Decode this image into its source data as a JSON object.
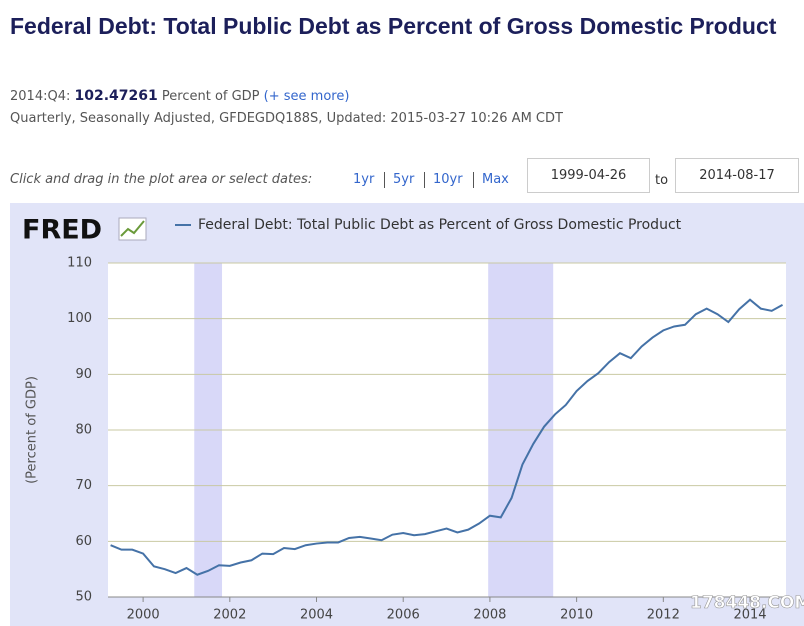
{
  "header": {
    "title": "Federal Debt: Total Public Debt as Percent of Gross Domestic Product",
    "date_label": "2014:Q4:",
    "value": "102.47261",
    "units": "Percent of GDP",
    "see_more": "(+ see more)",
    "details": "Quarterly, Seasonally Adjusted, GFDEGDQ188S, Updated: 2015-03-27 10:26 AM CDT"
  },
  "controls": {
    "prompt": "Click and drag in the plot area or select dates:",
    "ranges": [
      "1yr",
      "5yr",
      "10yr",
      "Max"
    ],
    "start": "1999-04-26",
    "to": "to",
    "end": "2014-08-17"
  },
  "chart_data": {
    "type": "line",
    "logo": "FRED",
    "ylabel": "(Percent of GDP)",
    "watermark": "178448.COM",
    "x": [
      1999.25,
      1999.5,
      1999.75,
      2000,
      2000.25,
      2000.5,
      2000.75,
      2001,
      2001.25,
      2001.5,
      2001.75,
      2002,
      2002.25,
      2002.5,
      2002.75,
      2003,
      2003.25,
      2003.5,
      2003.75,
      2004,
      2004.25,
      2004.5,
      2004.75,
      2005,
      2005.25,
      2005.5,
      2005.75,
      2006,
      2006.25,
      2006.5,
      2006.75,
      2007,
      2007.25,
      2007.5,
      2007.75,
      2008,
      2008.25,
      2008.5,
      2008.75,
      2009,
      2009.25,
      2009.5,
      2009.75,
      2010,
      2010.25,
      2010.5,
      2010.75,
      2011,
      2011.25,
      2011.5,
      2011.75,
      2012,
      2012.25,
      2012.5,
      2012.75,
      2013,
      2013.25,
      2013.5,
      2013.75,
      2014,
      2014.25,
      2014.5,
      2014.75
    ],
    "series": [
      {
        "name": "Federal Debt: Total Public Debt as Percent of Gross Domestic Product",
        "color": "#4572a7",
        "values": [
          59.3,
          58.5,
          58.5,
          57.8,
          55.5,
          55.0,
          54.3,
          55.2,
          54.0,
          54.7,
          55.7,
          55.6,
          56.2,
          56.6,
          57.8,
          57.7,
          58.8,
          58.6,
          59.3,
          59.6,
          59.8,
          59.8,
          60.6,
          60.8,
          60.5,
          60.2,
          61.2,
          61.5,
          61.1,
          61.3,
          61.8,
          62.3,
          61.6,
          62.1,
          63.2,
          64.6,
          64.3,
          67.8,
          73.8,
          77.5,
          80.6,
          82.8,
          84.5,
          87.0,
          88.8,
          90.2,
          92.2,
          93.8,
          92.9,
          95.0,
          96.6,
          97.9,
          98.6,
          98.9,
          100.8,
          101.8,
          100.8,
          99.4,
          101.7,
          103.4,
          101.8,
          101.4,
          102.47261
        ]
      }
    ],
    "xlim": [
      1999.19,
      2014.83
    ],
    "xticks": [
      2000,
      2002,
      2004,
      2006,
      2008,
      2010,
      2012,
      2014
    ],
    "ylim": [
      50,
      110
    ],
    "yticks": [
      50,
      60,
      70,
      80,
      90,
      100,
      110
    ],
    "grid": true,
    "recessions": [
      [
        2001.18,
        2001.82
      ],
      [
        2007.96,
        2009.46
      ]
    ],
    "recession_color": "#d8d8f8"
  }
}
